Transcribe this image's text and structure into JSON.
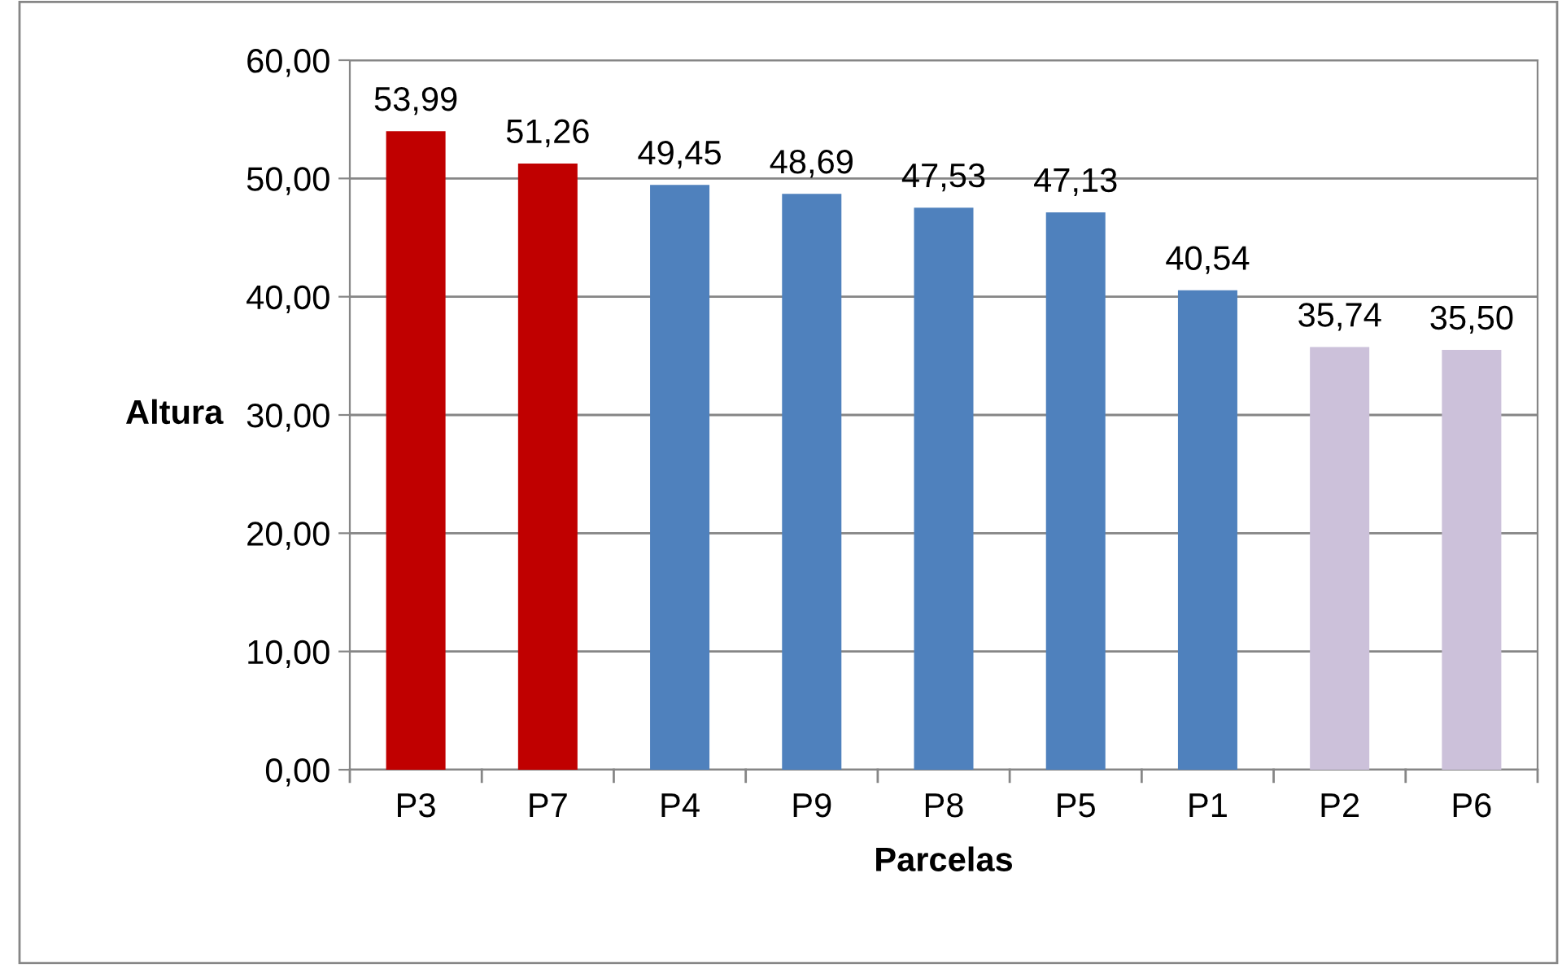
{
  "chart_data": {
    "type": "bar",
    "xlabel": "Parcelas",
    "ylabel": "Altura",
    "categories": [
      "P3",
      "P7",
      "P4",
      "P9",
      "P8",
      "P5",
      "P1",
      "P2",
      "P6"
    ],
    "values": [
      53.99,
      51.26,
      49.45,
      48.69,
      47.53,
      47.13,
      40.54,
      35.74,
      35.5
    ],
    "value_labels": [
      "53,99",
      "51,26",
      "49,45",
      "48,69",
      "47,53",
      "47,13",
      "40,54",
      "35,74",
      "35,50"
    ],
    "colors": [
      "#c00000",
      "#c00000",
      "#4f81bd",
      "#4f81bd",
      "#4f81bd",
      "#4f81bd",
      "#4f81bd",
      "#ccc1da",
      "#ccc1da"
    ],
    "ylim": [
      0,
      60
    ],
    "yticks": [
      {
        "value": 0,
        "label": "0,00"
      },
      {
        "value": 10,
        "label": "10,00"
      },
      {
        "value": 20,
        "label": "20,00"
      },
      {
        "value": 30,
        "label": "30,00"
      },
      {
        "value": 40,
        "label": "40,00"
      },
      {
        "value": 50,
        "label": "50,00"
      },
      {
        "value": 60,
        "label": "60,00"
      }
    ],
    "grid": "y",
    "legend": false
  }
}
